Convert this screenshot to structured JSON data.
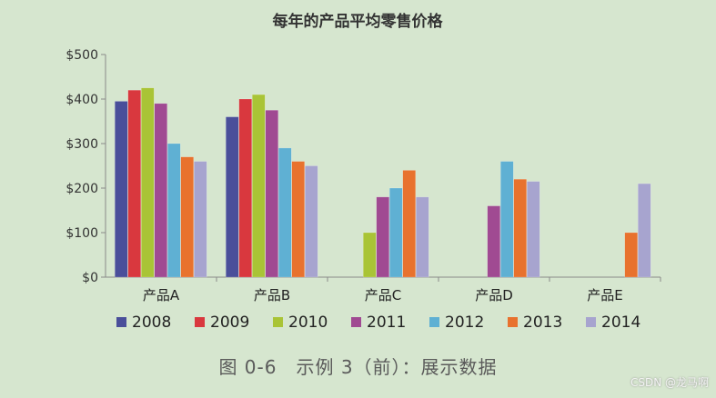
{
  "chart_data": {
    "type": "bar",
    "title": "每年的产品平均零售价格",
    "xlabel": "",
    "ylabel": "",
    "ylim": [
      0,
      500
    ],
    "yticks": [
      {
        "value": 0,
        "label": "$0"
      },
      {
        "value": 100,
        "label": "$100"
      },
      {
        "value": 200,
        "label": "$200"
      },
      {
        "value": 300,
        "label": "$300"
      },
      {
        "value": 400,
        "label": "$400"
      },
      {
        "value": 500,
        "label": "$500"
      }
    ],
    "categories": [
      "产品A",
      "产品B",
      "产品C",
      "产品D",
      "产品E"
    ],
    "series": [
      {
        "name": "2008",
        "color": "#4a4f9a",
        "values": [
          395,
          360,
          null,
          null,
          null
        ]
      },
      {
        "name": "2009",
        "color": "#d9383e",
        "values": [
          420,
          400,
          null,
          null,
          null
        ]
      },
      {
        "name": "2010",
        "color": "#a9c436",
        "values": [
          425,
          410,
          100,
          null,
          null
        ]
      },
      {
        "name": "2011",
        "color": "#a04a92",
        "values": [
          390,
          375,
          180,
          160,
          null
        ]
      },
      {
        "name": "2012",
        "color": "#5fb0d3",
        "values": [
          300,
          290,
          200,
          260,
          null
        ]
      },
      {
        "name": "2013",
        "color": "#e8722e",
        "values": [
          270,
          260,
          240,
          220,
          100
        ]
      },
      {
        "name": "2014",
        "color": "#a7a4cf",
        "values": [
          260,
          250,
          180,
          215,
          210
        ]
      }
    ],
    "grid": false,
    "legend_position": "bottom"
  },
  "caption": "图 0-6　示例 3（前）：展示数据",
  "watermark": "CSDN @龙马啊"
}
